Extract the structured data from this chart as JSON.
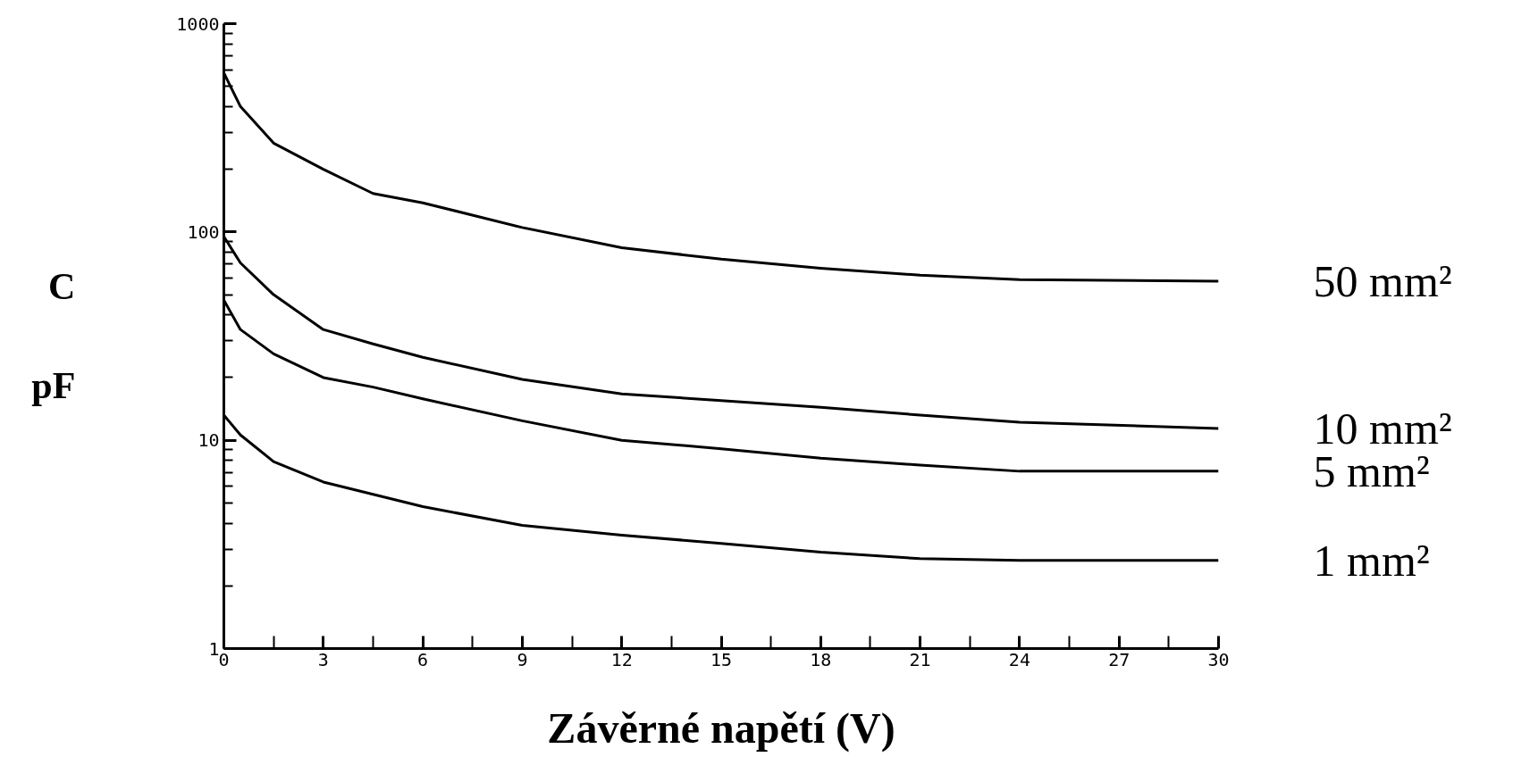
{
  "chart_data": {
    "type": "line",
    "xlabel": "Závěrné napětí (V)",
    "ylabel": "C\npF",
    "log": "y",
    "x": [
      0,
      0.5,
      1.5,
      3,
      4.5,
      6,
      9,
      12,
      15,
      18,
      21,
      24,
      30
    ],
    "xlim": [
      0,
      30
    ],
    "xticks": [
      0,
      3,
      6,
      9,
      12,
      15,
      18,
      21,
      24,
      27,
      30
    ],
    "ylim": [
      1,
      1000
    ],
    "yticks": [
      1,
      10,
      100,
      1000
    ],
    "grid": false,
    "legend": false,
    "marker": "none",
    "line_style": "solid",
    "series": [
      {
        "name": "50 mm²",
        "color": "#000000",
        "values": [
          580,
          400,
          267,
          200,
          153,
          138,
          105,
          84,
          74,
          67,
          62,
          59,
          58
        ]
      },
      {
        "name": "10 mm²",
        "color": "#000000",
        "values": [
          95,
          71,
          50,
          34,
          29,
          25,
          19.6,
          16.7,
          15.5,
          14.4,
          13.2,
          12.2,
          11.4
        ]
      },
      {
        "name": "5 mm²",
        "color": "#000000",
        "values": [
          47,
          34,
          26,
          20,
          18,
          15.8,
          12.4,
          10,
          9.1,
          8.2,
          7.6,
          7.1,
          7.1
        ]
      },
      {
        "name": "1 mm²",
        "color": "#000000",
        "values": [
          13.2,
          10.6,
          7.9,
          6.3,
          5.5,
          4.8,
          3.9,
          3.5,
          3.2,
          2.9,
          2.7,
          2.65,
          2.65
        ]
      }
    ]
  }
}
